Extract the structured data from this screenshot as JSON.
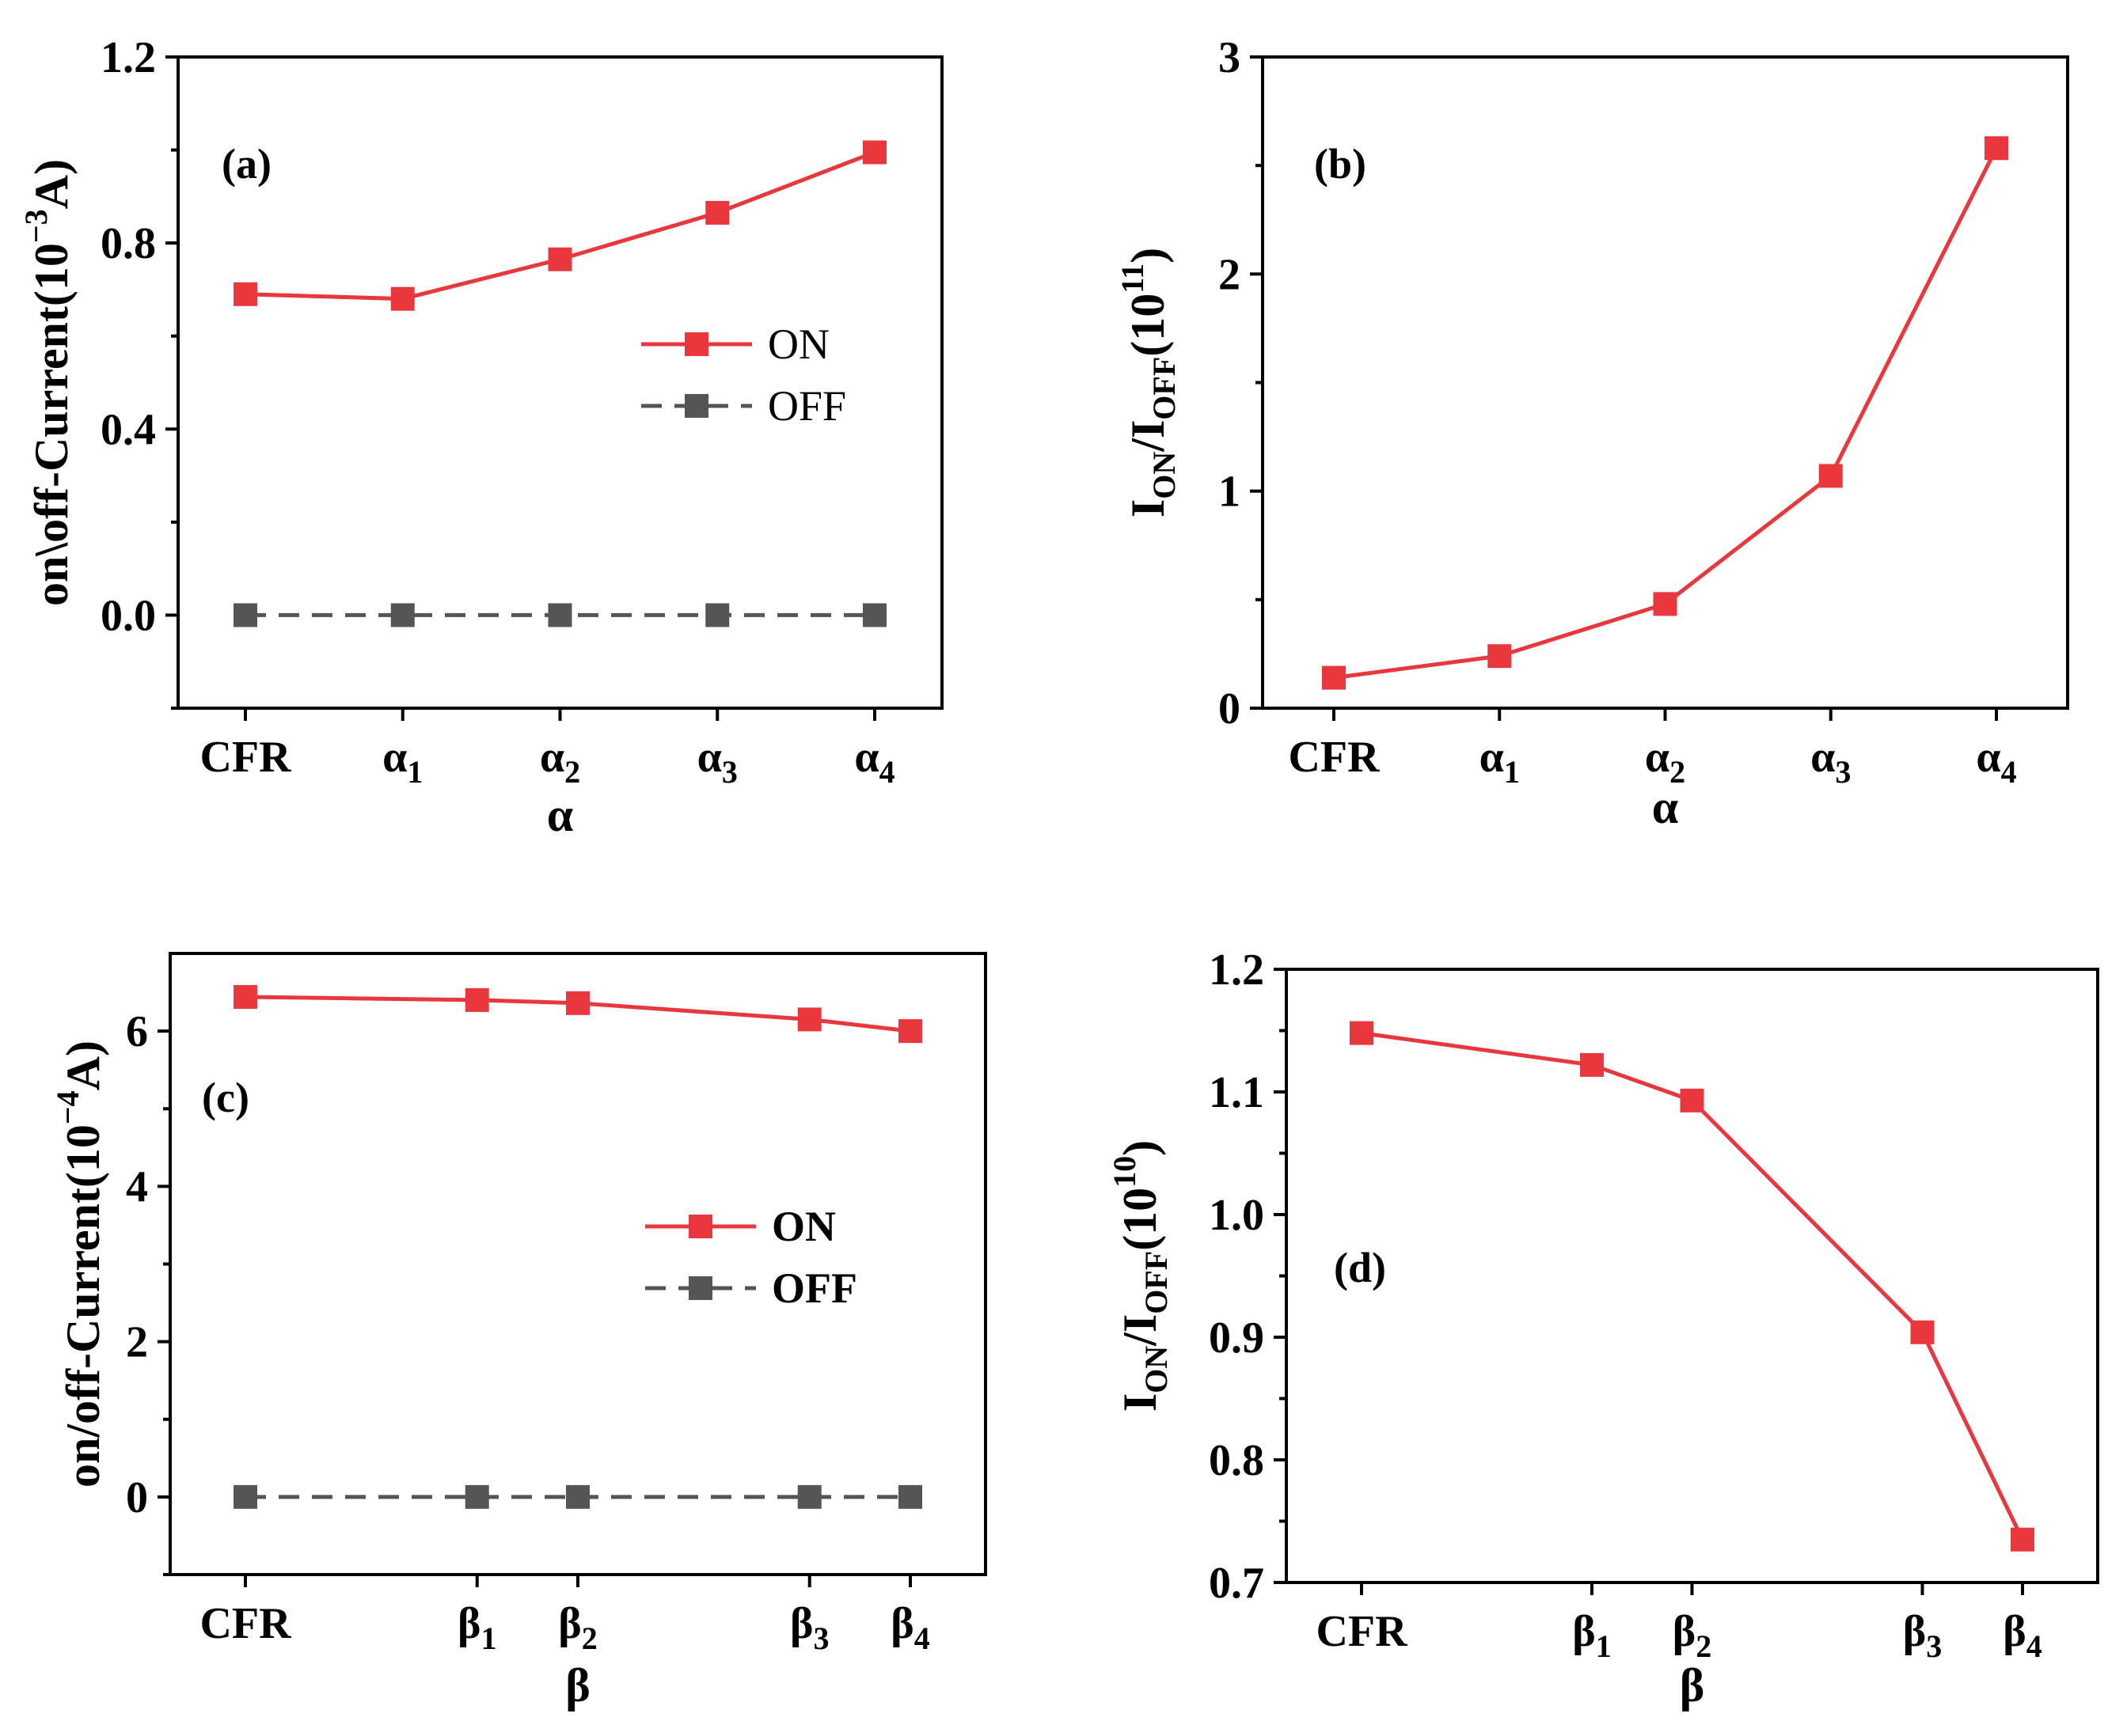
{
  "colors": {
    "on": "#e8383d",
    "off": "#555555",
    "axis": "#000000"
  },
  "chart_data": [
    {
      "id": "a",
      "type": "line",
      "panel_label": "(a)",
      "xlabel": "α",
      "ylabel": "on\\off-Current(10",
      "ylabel_exp": "−3",
      "ylabel_tail": "A)",
      "categories": [
        {
          "base": "CFR",
          "sub": ""
        },
        {
          "base": "α",
          "sub": "1"
        },
        {
          "base": "α",
          "sub": "2"
        },
        {
          "base": "α",
          "sub": "3"
        },
        {
          "base": "α",
          "sub": "4"
        }
      ],
      "x_positions": [
        0,
        1,
        2,
        3,
        4
      ],
      "ylim": [
        -0.2,
        1.2
      ],
      "yticks": [
        "0.0",
        "0.4",
        "0.8",
        "1.2"
      ],
      "ytick_values": [
        0.0,
        0.4,
        0.8,
        1.2
      ],
      "minor_yticks": [
        -0.2,
        0.2,
        0.6,
        1.0
      ],
      "legend": [
        "ON",
        "OFF"
      ],
      "legend_bold": false,
      "series": [
        {
          "name": "ON",
          "values": [
            0.69,
            0.68,
            0.765,
            0.865,
            0.995
          ]
        },
        {
          "name": "OFF",
          "values": [
            0.0,
            0.0,
            0.0,
            0.0,
            0.0
          ]
        }
      ]
    },
    {
      "id": "b",
      "type": "line",
      "panel_label": "(b)",
      "xlabel": "α",
      "ylabel_parts": [
        "I",
        "ON",
        "/I",
        "OFF",
        "(10",
        "11",
        ")"
      ],
      "categories": [
        {
          "base": "CFR",
          "sub": ""
        },
        {
          "base": "α",
          "sub": "1"
        },
        {
          "base": "α",
          "sub": "2"
        },
        {
          "base": "α",
          "sub": "3"
        },
        {
          "base": "α",
          "sub": "4"
        }
      ],
      "x_positions": [
        0,
        1,
        2,
        3,
        4
      ],
      "ylim": [
        0,
        3
      ],
      "yticks": [
        "0",
        "1",
        "2",
        "3"
      ],
      "ytick_values": [
        0,
        1,
        2,
        3
      ],
      "minor_yticks": [
        0.5,
        1.5,
        2.5
      ],
      "series": [
        {
          "name": "ION/IOFF",
          "values": [
            0.14,
            0.24,
            0.48,
            1.07,
            2.58
          ]
        }
      ]
    },
    {
      "id": "c",
      "type": "line",
      "panel_label": "(c)",
      "xlabel": "β",
      "ylabel": "on/off-Current(10",
      "ylabel_exp": "−4",
      "ylabel_tail": "A)",
      "categories": [
        {
          "base": "CFR",
          "sub": ""
        },
        {
          "base": "β",
          "sub": "1"
        },
        {
          "base": "β",
          "sub": "2"
        },
        {
          "base": "β",
          "sub": "3"
        },
        {
          "base": "β",
          "sub": "4"
        }
      ],
      "x_positions": [
        0,
        2.3,
        3.3,
        5.6,
        6.6
      ],
      "ylim": [
        -1,
        7
      ],
      "yticks": [
        "0",
        "2",
        "4",
        "6"
      ],
      "ytick_values": [
        0,
        2,
        4,
        6
      ],
      "minor_yticks": [
        -1,
        1,
        3,
        5
      ],
      "legend": [
        "ON",
        "OFF"
      ],
      "legend_bold": true,
      "series": [
        {
          "name": "ON",
          "values": [
            6.44,
            6.4,
            6.36,
            6.15,
            6.0
          ]
        },
        {
          "name": "OFF",
          "values": [
            0.0,
            0.0,
            0.0,
            0.0,
            0.0
          ]
        }
      ]
    },
    {
      "id": "d",
      "type": "line",
      "panel_label": "(d)",
      "xlabel": "β",
      "ylabel_parts": [
        "I",
        "ON",
        "/I",
        "OFF",
        "(10",
        "10",
        ")"
      ],
      "categories": [
        {
          "base": "CFR",
          "sub": ""
        },
        {
          "base": "β",
          "sub": "1"
        },
        {
          "base": "β",
          "sub": "2"
        },
        {
          "base": "β",
          "sub": "3"
        },
        {
          "base": "β",
          "sub": "4"
        }
      ],
      "x_positions": [
        0,
        2.3,
        3.3,
        5.6,
        6.6
      ],
      "ylim": [
        0.7,
        1.2
      ],
      "yticks": [
        "0.7",
        "0.8",
        "0.9",
        "1.0",
        "1.1",
        "1.2"
      ],
      "ytick_values": [
        0.7,
        0.8,
        0.9,
        1.0,
        1.1,
        1.2
      ],
      "minor_yticks": [
        0.75,
        0.85,
        0.95,
        1.05,
        1.15
      ],
      "series": [
        {
          "name": "ION/IOFF",
          "values": [
            1.148,
            1.122,
            1.093,
            0.904,
            0.735
          ]
        }
      ]
    }
  ]
}
